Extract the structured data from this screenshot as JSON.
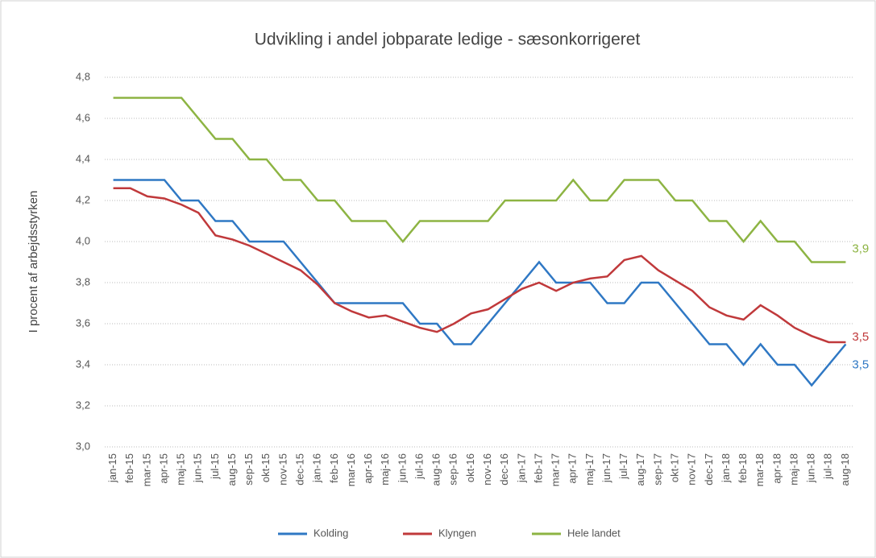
{
  "chart_data": {
    "type": "line",
    "title": "Udvikling i andel jobparate ledige - sæsonkorrigeret",
    "y_label": "I procent af arbejdsstyrken",
    "categories": [
      "jan-15",
      "feb-15",
      "mar-15",
      "apr-15",
      "maj-15",
      "jun-15",
      "jul-15",
      "aug-15",
      "sep-15",
      "okt-15",
      "nov-15",
      "dec-15",
      "jan-16",
      "feb-16",
      "mar-16",
      "apr-16",
      "maj-16",
      "jun-16",
      "jul-16",
      "aug-16",
      "sep-16",
      "okt-16",
      "nov-16",
      "dec-16",
      "jan-17",
      "feb-17",
      "mar-17",
      "apr-17",
      "maj-17",
      "jun-17",
      "jul-17",
      "aug-17",
      "sep-17",
      "okt-17",
      "nov-17",
      "dec-17",
      "jan-18",
      "feb-18",
      "mar-18",
      "apr-18",
      "maj-18",
      "jun-18",
      "jul-18",
      "aug-18"
    ],
    "series": [
      {
        "name": "Kolding",
        "color": "#2f78c4",
        "values": [
          4.3,
          4.3,
          4.3,
          4.3,
          4.2,
          4.2,
          4.1,
          4.1,
          4.0,
          4.0,
          4.0,
          3.9,
          3.8,
          3.7,
          3.7,
          3.7,
          3.7,
          3.7,
          3.6,
          3.6,
          3.5,
          3.5,
          3.6,
          3.7,
          3.8,
          3.9,
          3.8,
          3.8,
          3.8,
          3.7,
          3.7,
          3.8,
          3.8,
          3.7,
          3.6,
          3.5,
          3.5,
          3.4,
          3.5,
          3.4,
          3.4,
          3.3,
          3.4,
          3.5
        ],
        "value_labels": [
          null,
          null,
          null,
          null,
          null,
          null,
          null,
          null,
          null,
          null,
          null,
          null,
          null,
          null,
          null,
          null,
          null,
          null,
          null,
          null,
          null,
          null,
          null,
          null,
          null,
          null,
          null,
          null,
          null,
          null,
          null,
          null,
          null,
          null,
          null,
          null,
          null,
          null,
          null,
          null,
          null,
          null,
          null,
          "3,5"
        ]
      },
      {
        "name": "Klyngen",
        "color": "#c0393b",
        "values": [
          4.26,
          4.26,
          4.22,
          4.21,
          4.18,
          4.14,
          4.03,
          4.01,
          3.98,
          3.94,
          3.9,
          3.86,
          3.79,
          3.7,
          3.66,
          3.63,
          3.64,
          3.61,
          3.58,
          3.56,
          3.6,
          3.65,
          3.67,
          3.72,
          3.77,
          3.8,
          3.76,
          3.8,
          3.82,
          3.83,
          3.91,
          3.93,
          3.86,
          3.81,
          3.76,
          3.68,
          3.64,
          3.62,
          3.69,
          3.64,
          3.58,
          3.54,
          3.51,
          3.51
        ],
        "value_labels": [
          null,
          null,
          null,
          null,
          null,
          null,
          null,
          null,
          null,
          null,
          null,
          null,
          null,
          null,
          null,
          null,
          null,
          null,
          null,
          null,
          null,
          null,
          null,
          null,
          null,
          null,
          null,
          null,
          null,
          null,
          null,
          null,
          null,
          null,
          null,
          null,
          null,
          null,
          null,
          null,
          null,
          null,
          null,
          "3,5"
        ]
      },
      {
        "name": "Hele landet",
        "color": "#8db443",
        "values": [
          4.7,
          4.7,
          4.7,
          4.7,
          4.7,
          4.6,
          4.5,
          4.5,
          4.4,
          4.4,
          4.3,
          4.3,
          4.2,
          4.2,
          4.1,
          4.1,
          4.1,
          4.0,
          4.1,
          4.1,
          4.1,
          4.1,
          4.1,
          4.2,
          4.2,
          4.2,
          4.2,
          4.3,
          4.2,
          4.2,
          4.3,
          4.3,
          4.3,
          4.2,
          4.2,
          4.1,
          4.1,
          4.0,
          4.1,
          4.0,
          4.0,
          3.9,
          3.9,
          3.9
        ],
        "value_labels": [
          null,
          null,
          null,
          null,
          null,
          null,
          null,
          null,
          null,
          null,
          null,
          null,
          null,
          null,
          null,
          null,
          null,
          null,
          null,
          null,
          null,
          null,
          null,
          null,
          null,
          null,
          null,
          null,
          null,
          null,
          null,
          null,
          null,
          null,
          null,
          null,
          null,
          null,
          null,
          null,
          null,
          null,
          null,
          "3,9"
        ]
      }
    ],
    "ylim": [
      3.0,
      4.8
    ],
    "yticks": [
      {
        "value": 3.0,
        "label": "3,0"
      },
      {
        "value": 3.2,
        "label": "3,2"
      },
      {
        "value": 3.4,
        "label": "3,4"
      },
      {
        "value": 3.6,
        "label": "3,6"
      },
      {
        "value": 3.8,
        "label": "3,8"
      },
      {
        "value": 4.0,
        "label": "4,0"
      },
      {
        "value": 4.2,
        "label": "4,2"
      },
      {
        "value": 4.4,
        "label": "4,4"
      },
      {
        "value": 4.6,
        "label": "4,6"
      },
      {
        "value": 4.8,
        "label": "4,8"
      }
    ],
    "grid": true,
    "legend": "bottom"
  }
}
